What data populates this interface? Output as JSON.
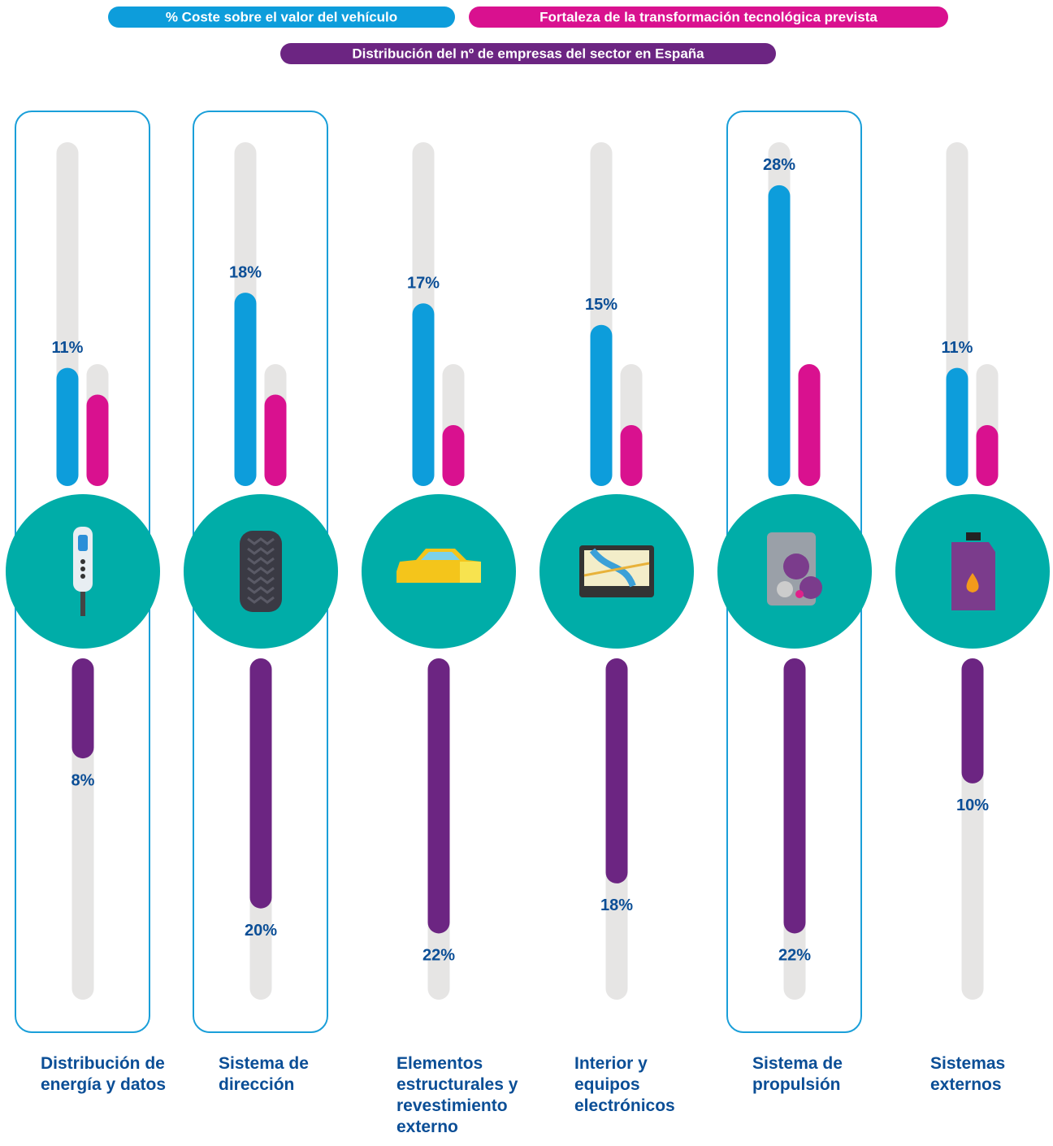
{
  "chart_data": {
    "type": "bar",
    "categories": [
      "Distribución de energía y datos",
      "Sistema de dirección",
      "Elementos estructurales y revestimiento externo",
      "Interior y equipos electrónicos",
      "Sistema de propulsión",
      "Sistemas externos"
    ],
    "highlight": [
      true,
      true,
      false,
      false,
      true,
      false
    ],
    "series": [
      {
        "name": "% Coste sobre el valor del vehículo",
        "color": "#0d9ddb",
        "values": [
          11,
          18,
          17,
          15,
          28,
          11
        ],
        "value_labels": [
          "11%",
          "18%",
          "17%",
          "15%",
          "28%",
          "11%"
        ],
        "lim": [
          0,
          32
        ]
      },
      {
        "name": "Fortaleza de la transformación tecnológica prevista",
        "color": "#d9118f",
        "values": [
          3,
          3,
          2,
          2,
          4,
          2
        ],
        "lim": [
          0,
          4
        ]
      },
      {
        "name": "Distribución del nº de empresas del sector en España",
        "color": "#6c2582",
        "values": [
          8,
          20,
          22,
          18,
          22,
          10
        ],
        "value_labels": [
          "8%",
          "20%",
          "22%",
          "18%",
          "22%",
          "10%"
        ],
        "lim": [
          0,
          27.3
        ]
      }
    ]
  }
}
